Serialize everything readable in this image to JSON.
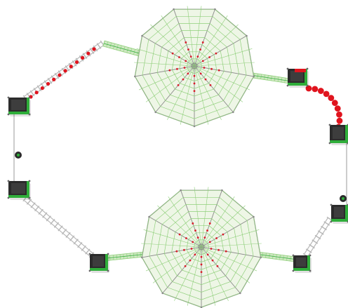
{
  "scene": {
    "kind": "playground-rope-course-top-view",
    "palette": {
      "background": "#ffffff",
      "net_fill": "#eef6e6",
      "net_line": "#8fcf7a",
      "net_rope": "#8a8a8a",
      "knot_red": "#d8202a",
      "platform_dark": "#2b2b2b",
      "platform_trim": "#2fae3a",
      "bead_red": "#e0141e",
      "plank": "#b7b7b7",
      "cable": "#9a9a9a",
      "bridge_net": "#cfe8c2"
    },
    "webs": [
      {
        "name": "spider-web-net-top",
        "spokes": 9,
        "rings": 8
      },
      {
        "name": "spider-web-net-bottom",
        "spokes": 9,
        "rings": 8
      }
    ],
    "platforms": [
      {
        "name": "platform-left-upper"
      },
      {
        "name": "platform-left-lower"
      },
      {
        "name": "platform-right-upper-red"
      },
      {
        "name": "platform-right-middle"
      },
      {
        "name": "platform-right-lower"
      },
      {
        "name": "platform-bottom-left"
      },
      {
        "name": "platform-bottom-right"
      }
    ]
  }
}
